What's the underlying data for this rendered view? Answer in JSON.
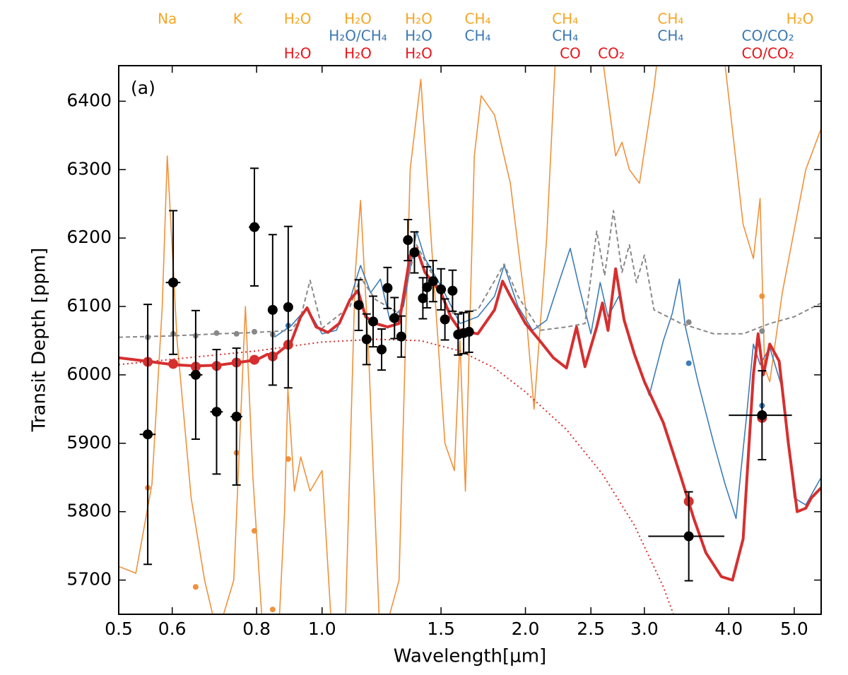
{
  "chart_data": {
    "type": "line",
    "panel_label": "(a)",
    "x_label": "Wavelength[μm]",
    "y_label": "Transit Depth [ppm]",
    "xscale": "log",
    "xlim": [
      0.5,
      5.48
    ],
    "ylim": [
      5650,
      6452
    ],
    "xticks": [
      0.5,
      0.6,
      0.8,
      {
        "value": 1,
        "label": "1.0"
      },
      1.5,
      {
        "value": 2,
        "label": "2.0"
      },
      2.5,
      {
        "value": 3,
        "label": "3.0"
      },
      {
        "value": 4,
        "label": "4.0"
      },
      {
        "value": 5,
        "label": "5.0"
      }
    ],
    "yticks": [
      5700,
      5800,
      5900,
      6000,
      6100,
      6200,
      6300,
      6400
    ],
    "annotations": [
      [
        {
          "text": "Na",
          "x": 0.59,
          "color": "#f5a623"
        },
        {
          "text": "K",
          "x": 0.75,
          "color": "#f5a623"
        },
        {
          "text": "H₂O",
          "x": 0.92,
          "color": "#f5a623"
        },
        {
          "text": "H₂O",
          "x": 1.13,
          "color": "#f5a623"
        },
        {
          "text": "H₂O",
          "x": 1.39,
          "color": "#f5a623"
        },
        {
          "text": "CH₄",
          "x": 1.7,
          "color": "#f5a623"
        },
        {
          "text": "CH₄",
          "x": 2.29,
          "color": "#f5a623"
        },
        {
          "text": "CH₄",
          "x": 3.28,
          "color": "#f5a623"
        },
        {
          "text": "H₂O",
          "x": 5.17,
          "color": "#f5a623"
        }
      ],
      [
        {
          "text": "H₂O/CH₄",
          "x": 1.13,
          "color": "#3a78b5"
        },
        {
          "text": "H₂O",
          "x": 1.39,
          "color": "#3a78b5"
        },
        {
          "text": "CH₄",
          "x": 1.7,
          "color": "#3a78b5"
        },
        {
          "text": "CH₄",
          "x": 2.29,
          "color": "#3a78b5"
        },
        {
          "text": "CH₄",
          "x": 3.28,
          "color": "#3a78b5"
        },
        {
          "text": "CO/CO₂",
          "x": 4.57,
          "color": "#3a78b5"
        }
      ],
      [
        {
          "text": "H₂O",
          "x": 0.92,
          "color": "#e8141a"
        },
        {
          "text": "H₂O",
          "x": 1.13,
          "color": "#e8141a"
        },
        {
          "text": "H₂O",
          "x": 1.39,
          "color": "#e8141a"
        },
        {
          "text": "CO",
          "x": 2.33,
          "color": "#e8141a"
        },
        {
          "text": "CO₂",
          "x": 2.68,
          "color": "#e8141a"
        },
        {
          "text": "CO/CO₂",
          "x": 4.57,
          "color": "#e8141a"
        }
      ]
    ],
    "series": [
      {
        "style": "line",
        "color": "#f0913a",
        "x": [
          0.5,
          0.53,
          0.56,
          0.58,
          0.59,
          0.61,
          0.64,
          0.67,
          0.7,
          0.74,
          0.77,
          0.79,
          0.82,
          0.86,
          0.88,
          0.89,
          0.91,
          0.93,
          0.96,
          1.0,
          1.03,
          1.08,
          1.12,
          1.14,
          1.17,
          1.22,
          1.3,
          1.35,
          1.4,
          1.45,
          1.52,
          1.57,
          1.6,
          1.63,
          1.68,
          1.72,
          1.8,
          1.9,
          2.0,
          2.06,
          2.15,
          2.25,
          2.5,
          2.62,
          2.72,
          2.78,
          2.85,
          2.95,
          3.1,
          3.3,
          3.8,
          4.2,
          4.35,
          4.45,
          4.52,
          4.6,
          4.8,
          5.2,
          5.48
        ],
        "values": [
          5720,
          5710,
          5840,
          6100,
          6320,
          6050,
          5820,
          5700,
          5620,
          5700,
          6100,
          5850,
          5600,
          5600,
          5800,
          5980,
          5830,
          5880,
          5830,
          5860,
          5650,
          5600,
          6150,
          6255,
          6050,
          5600,
          5700,
          6300,
          6432,
          6200,
          5900,
          5860,
          6050,
          5830,
          6320,
          6408,
          6380,
          6280,
          6100,
          5950,
          6200,
          6600,
          6600,
          6440,
          6320,
          6340,
          6300,
          6280,
          6420,
          6650,
          6600,
          6220,
          6170,
          6258,
          6010,
          5990,
          6120,
          6300,
          6360
        ]
      },
      {
        "style": "line",
        "color": "#3c7cb8",
        "x": [
          0.85,
          0.9,
          0.95,
          1.0,
          1.05,
          1.1,
          1.14,
          1.18,
          1.22,
          1.26,
          1.32,
          1.38,
          1.42,
          1.5,
          1.6,
          1.7,
          1.8,
          1.86,
          1.95,
          2.05,
          2.15,
          2.25,
          2.33,
          2.4,
          2.5,
          2.58,
          2.65,
          2.75,
          2.85,
          3.05,
          3.2,
          3.3,
          3.38,
          3.45,
          3.6,
          3.8,
          3.95,
          4.1,
          4.25,
          4.35,
          4.45,
          4.6,
          4.8,
          5.0,
          5.2,
          5.48
        ],
        "values": [
          6055,
          6072,
          6098,
          6060,
          6065,
          6110,
          6160,
          6120,
          6140,
          6080,
          6100,
          6210,
          6170,
          6130,
          6075,
          6085,
          6115,
          6160,
          6100,
          6065,
          6080,
          6140,
          6185,
          6130,
          6060,
          6135,
          6085,
          6115,
          6050,
          5970,
          6050,
          6090,
          6140,
          6070,
          5990,
          5900,
          5840,
          5790,
          5940,
          6045,
          6015,
          6040,
          5980,
          5820,
          5810,
          5850
        ]
      },
      {
        "style": "dashed",
        "color": "#888888",
        "x": [
          0.5,
          0.6,
          0.7,
          0.8,
          0.9,
          0.93,
          0.96,
          1.0,
          1.1,
          1.14,
          1.2,
          1.3,
          1.38,
          1.45,
          1.55,
          1.7,
          1.86,
          1.95,
          2.1,
          2.3,
          2.45,
          2.55,
          2.62,
          2.7,
          2.78,
          2.85,
          2.92,
          3.0,
          3.1,
          3.4,
          3.8,
          4.2,
          4.6,
          5.0,
          5.48
        ],
        "values": [
          6055,
          6057,
          6060,
          6062,
          6065,
          6085,
          6138,
          6068,
          6100,
          6142,
          6110,
          6090,
          6190,
          6150,
          6090,
          6095,
          6162,
          6115,
          6065,
          6070,
          6075,
          6210,
          6145,
          6240,
          6150,
          6190,
          6135,
          6175,
          6095,
          6075,
          6060,
          6060,
          6075,
          6085,
          6105
        ]
      },
      {
        "style": "dotted",
        "color": "#d62f2f",
        "x": [
          0.5,
          0.8,
          1.0,
          1.2,
          1.4,
          1.6,
          1.8,
          2.0,
          2.3,
          2.6,
          2.9,
          3.2,
          3.4
        ],
        "values": [
          6015,
          6035,
          6048,
          6052,
          6050,
          6035,
          6010,
          5975,
          5920,
          5855,
          5780,
          5690,
          5620
        ]
      },
      {
        "style": "thick",
        "color": "#d62f2f",
        "x": [
          0.5,
          0.55,
          0.6,
          0.65,
          0.7,
          0.75,
          0.8,
          0.83,
          0.85,
          0.88,
          0.9,
          0.93,
          0.95,
          0.98,
          1.02,
          1.06,
          1.1,
          1.13,
          1.16,
          1.2,
          1.25,
          1.3,
          1.35,
          1.38,
          1.42,
          1.5,
          1.55,
          1.6,
          1.7,
          1.8,
          1.85,
          1.9,
          2.0,
          2.1,
          2.2,
          2.3,
          2.38,
          2.45,
          2.55,
          2.6,
          2.65,
          2.72,
          2.8,
          2.9,
          3.0,
          3.2,
          3.4,
          3.55,
          3.7,
          3.9,
          4.05,
          4.2,
          4.35,
          4.42,
          4.5,
          4.6,
          4.75,
          4.9,
          5.05,
          5.2,
          5.3,
          5.48
        ],
        "values": [
          6025,
          6020,
          6015,
          6013,
          6014,
          6018,
          6022,
          6030,
          6028,
          6040,
          6048,
          6085,
          6098,
          6070,
          6062,
          6075,
          6110,
          6123,
          6085,
          6075,
          6070,
          6075,
          6175,
          6185,
          6150,
          6120,
          6085,
          6065,
          6060,
          6095,
          6137,
          6115,
          6075,
          6050,
          6025,
          6010,
          6070,
          6012,
          6070,
          6105,
          6065,
          6155,
          6080,
          6030,
          5990,
          5930,
          5850,
          5790,
          5740,
          5705,
          5700,
          5760,
          6000,
          6060,
          6000,
          6045,
          6020,
          5900,
          5800,
          5805,
          5820,
          5835
        ]
      },
      {
        "style": "markers",
        "color": "#888888",
        "size": 4,
        "x": [
          0.552,
          0.602,
          0.65,
          0.698,
          0.747,
          0.794,
          0.845,
          3.49,
          4.48
        ],
        "values": [
          6055,
          6060,
          6057,
          6061,
          6060,
          6063,
          6059,
          6077,
          6064
        ]
      },
      {
        "style": "markers",
        "color": "#3c7cb8",
        "size": 4,
        "x": [
          0.891,
          3.49,
          4.48
        ],
        "values": [
          6072,
          6017,
          5955
        ]
      },
      {
        "style": "markers",
        "color": "#f0913a",
        "size": 4,
        "x": [
          0.552,
          0.65,
          0.747,
          0.794,
          0.845,
          0.891,
          4.48
        ],
        "values": [
          5835,
          5690,
          5886,
          5772,
          5657,
          5877,
          6115
        ]
      },
      {
        "style": "markers",
        "color": "#d62f2f",
        "size": 7,
        "x": [
          0.552,
          0.602,
          0.65,
          0.698,
          0.747,
          0.794,
          0.845,
          0.891,
          3.49,
          4.48
        ],
        "values": [
          6019,
          6016,
          6012,
          6013,
          6018,
          6022,
          6027,
          6044,
          5815,
          5937
        ]
      },
      {
        "style": "errorbar",
        "color": "#000000",
        "x": [
          0.552,
          0.602,
          0.65,
          0.698,
          0.747,
          0.794,
          0.845,
          0.891,
          1.133,
          1.164,
          1.19,
          1.225,
          1.25,
          1.28,
          1.31,
          1.34,
          1.37,
          1.41,
          1.43,
          1.46,
          1.5,
          1.52,
          1.56,
          1.59,
          1.62,
          1.65,
          3.49,
          4.48
        ],
        "values": [
          5913,
          6135,
          6000,
          5946,
          5939,
          6216,
          6095,
          6099,
          6102,
          6052,
          6078,
          6037,
          6127,
          6083,
          6056,
          6197,
          6179,
          6112,
          6128,
          6137,
          6125,
          6081,
          6123,
          6059,
          6061,
          6063,
          5764,
          5941
        ],
        "yerr": [
          190,
          105,
          94,
          91,
          100,
          86,
          110,
          118,
          37,
          37,
          37,
          30,
          30,
          30,
          30,
          30,
          30,
          30,
          30,
          30,
          30,
          30,
          30,
          30,
          30,
          30,
          65,
          65
        ],
        "xerr": [
          0.015,
          0.015,
          0.015,
          0.015,
          0.015,
          0.015,
          0,
          0,
          0,
          0,
          0,
          0,
          0,
          0,
          0,
          0,
          0,
          0,
          0,
          0,
          0,
          0,
          0,
          0,
          0,
          0,
          0.45,
          0.48
        ]
      }
    ]
  }
}
